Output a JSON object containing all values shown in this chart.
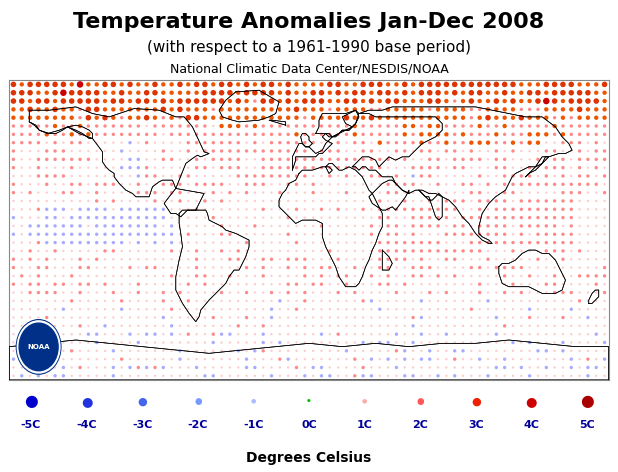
{
  "title": "Temperature Anomalies Jan-Dec 2008",
  "subtitle": "(with respect to a 1961-1990 base period)",
  "source": "National Climatic Data Center/NESDIS/NOAA",
  "xlabel": "Degrees Celsius",
  "legend_labels": [
    "-5C",
    "-4C",
    "-3C",
    "-2C",
    "-1C",
    "0C",
    "1C",
    "2C",
    "3C",
    "4C",
    "5C"
  ],
  "bg_color": "#ffffff",
  "title_fontsize": 16,
  "subtitle_fontsize": 11,
  "source_fontsize": 9,
  "xlabel_fontsize": 10,
  "seed": 42,
  "legend_colors": [
    "#0000CC",
    "#2233DD",
    "#4466EE",
    "#7799FF",
    "#AABBFF",
    "#00BB00",
    "#FFAAAA",
    "#FF5555",
    "#EE2200",
    "#CC0000",
    "#AA0000"
  ],
  "legend_dot_sizes": [
    200,
    140,
    100,
    60,
    30,
    15,
    30,
    60,
    100,
    140,
    200
  ]
}
